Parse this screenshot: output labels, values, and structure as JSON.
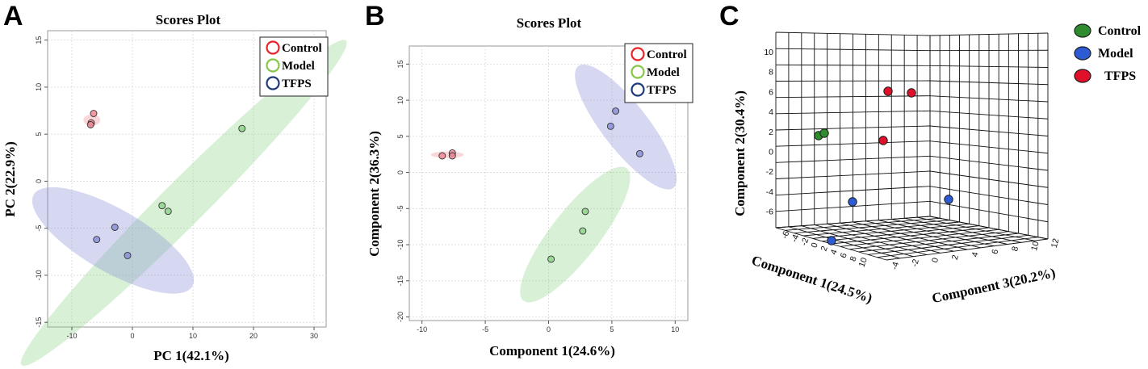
{
  "chart_data": [
    {
      "panel": "A",
      "type": "scatter",
      "title": "Scores Plot",
      "xlabel": "PC 1(42.1%)",
      "ylabel": "PC 2(22.9%)",
      "xlim": [
        -14,
        32
      ],
      "ylim": [
        -15.5,
        16
      ],
      "xticks": [
        -10,
        0,
        10,
        20,
        30
      ],
      "yticks": [
        -15,
        -10,
        -5,
        0,
        5,
        10,
        15
      ],
      "grid": true,
      "legend_position": "top-right",
      "series": [
        {
          "name": "Control",
          "color": "#e8232a",
          "fill": "#f08a96",
          "points": [
            [
              -6.4,
              7.2
            ],
            [
              -6.8,
              6.2
            ],
            [
              -6.9,
              6.0
            ]
          ],
          "ellipse": {
            "cx": -6.7,
            "cy": 6.5,
            "rx": 0.6,
            "ry": 1.4,
            "angle": 90
          }
        },
        {
          "name": "Model",
          "color": "#86c64a",
          "fill": "#8fd48a",
          "points": [
            [
              18.1,
              5.6
            ],
            [
              4.9,
              -2.6
            ],
            [
              5.9,
              -3.2
            ]
          ],
          "ellipse": {
            "cx": 8.5,
            "cy": -2.3,
            "rx": 29,
            "ry": 2.8,
            "angle": 45
          }
        },
        {
          "name": "TFPS",
          "color": "#1f3a7a",
          "fill": "#8a90d8",
          "points": [
            [
              -2.9,
              -4.9
            ],
            [
              -5.9,
              -6.2
            ],
            [
              -0.8,
              -7.9
            ]
          ],
          "ellipse": {
            "cx": -3.2,
            "cy": -6.3,
            "rx": 13,
            "ry": 3.6,
            "angle": -30
          }
        }
      ]
    },
    {
      "panel": "B",
      "type": "scatter",
      "title": "Scores Plot",
      "xlabel": "Component 1(24.6%)",
      "ylabel": "Component 2(36.3%)",
      "xlim": [
        -11,
        11
      ],
      "ylim": [
        -20.5,
        17.5
      ],
      "xticks": [
        -10,
        -5,
        0,
        5,
        10
      ],
      "yticks": [
        -20,
        -15,
        -10,
        -5,
        0,
        5,
        10,
        15
      ],
      "grid": true,
      "legend_position": "top-right",
      "series": [
        {
          "name": "Control",
          "color": "#e8232a",
          "fill": "#f08a96",
          "points": [
            [
              -8.4,
              2.3
            ],
            [
              -7.6,
              2.7
            ],
            [
              -7.6,
              2.3
            ]
          ],
          "ellipse": {
            "cx": -8.0,
            "cy": 2.45,
            "rx": 1.3,
            "ry": 0.45,
            "angle": 0
          }
        },
        {
          "name": "Model",
          "color": "#86c64a",
          "fill": "#8fd48a",
          "points": [
            [
              2.9,
              -5.4
            ],
            [
              2.7,
              -8.1
            ],
            [
              0.2,
              -12.0
            ]
          ],
          "ellipse": {
            "cx": 2.1,
            "cy": -8.6,
            "rx": 2.2,
            "ry": 8.7,
            "angle": -38
          }
        },
        {
          "name": "TFPS",
          "color": "#1f3a7a",
          "fill": "#8a90d8",
          "points": [
            [
              5.3,
              8.5
            ],
            [
              4.9,
              6.4
            ],
            [
              7.2,
              2.6
            ]
          ],
          "ellipse": {
            "cx": 6.1,
            "cy": 6.3,
            "rx": 2.1,
            "ry": 8.0,
            "angle": 38
          }
        }
      ]
    },
    {
      "panel": "C",
      "type": "scatter",
      "subtype": "3d-scatter",
      "xlabel": "Component 1(24.5%)",
      "ylabel": "Component 2(30.4%)",
      "zlabel": "Component 3(20.2%)",
      "component1_ticks": [
        "-6",
        "-4",
        "-2",
        "0",
        "2",
        "4",
        "6",
        "8",
        "10"
      ],
      "component2_ticks": [
        "10",
        "8",
        "6",
        "4",
        "2",
        "0",
        "-2",
        "-4",
        "-6"
      ],
      "component3_ticks": [
        "-4",
        "-2",
        "0",
        "2",
        "4",
        "6",
        "8",
        "10",
        "12"
      ],
      "grid": true,
      "legend_position": "top-right",
      "series": [
        {
          "name": "Control",
          "color": "#2e8b2e",
          "points_projected": [
            [
              1014,
              168
            ],
            [
              1021,
              165
            ]
          ]
        },
        {
          "name": "Model",
          "color": "#2d5bd4",
          "points_projected": [
            [
              1056,
              250
            ],
            [
              1175,
              247
            ],
            [
              1030,
              298
            ]
          ]
        },
        {
          "name": "TFPS",
          "color": "#e0102a",
          "points_projected": [
            [
              1100,
              113
            ],
            [
              1129,
              115
            ],
            [
              1094,
              174
            ]
          ]
        }
      ]
    }
  ]
}
